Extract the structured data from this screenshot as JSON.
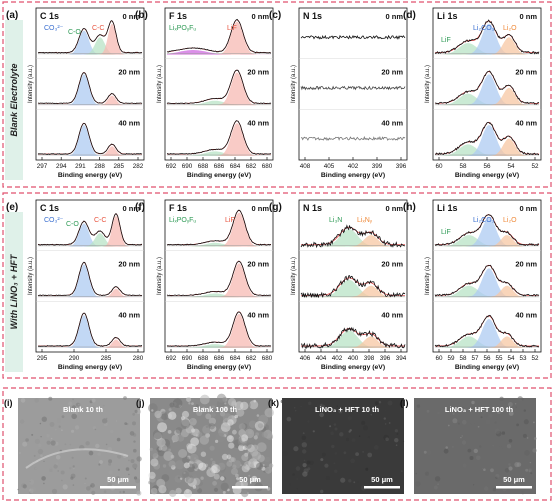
{
  "rows": [
    {
      "side_label": "Blank Electrolyte"
    },
    {
      "side_label": "With LiNO₃ + HFT"
    }
  ],
  "depths": [
    "0 nm",
    "20 nm",
    "40 nm"
  ],
  "y_label": "Intensity (a.u.)",
  "x_label": "Binding energy (eV)",
  "colors": {
    "frame": "#e0506e",
    "side_bg": "#dff1e9",
    "red_fill": "#f7b9b3",
    "blue_fill": "#aecbf2",
    "green_fill": "#b8e3c5",
    "orange_fill": "#f7c7a3",
    "purple_fill": "#cf6ae0",
    "label_red": "#e8533e",
    "label_blue": "#3a6fd0",
    "label_green": "#2e9a55",
    "label_orange": "#ef8a3a"
  },
  "panels": [
    {
      "letter": "(a)",
      "title": "C 1s",
      "ticks": [
        "297",
        "294",
        "291",
        "288",
        "285",
        "282"
      ],
      "peaks": [
        "CO₃²⁻",
        "C-O",
        "C-C"
      ],
      "shape": "c1s-blank"
    },
    {
      "letter": "(b)",
      "title": "F 1s",
      "ticks": [
        "692",
        "690",
        "688",
        "686",
        "684",
        "682",
        "680"
      ],
      "peaks": [
        "LiₓPOᵧFᵤ",
        "LiF"
      ],
      "shape": "f1s-blank"
    },
    {
      "letter": "(c)",
      "title": "N 1s",
      "ticks": [
        "408",
        "405",
        "402",
        "399",
        "396"
      ],
      "peaks": [],
      "shape": "n1s-blank"
    },
    {
      "letter": "(d)",
      "title": "Li 1s",
      "ticks": [
        "60",
        "58",
        "56",
        "54",
        "52"
      ],
      "peaks": [
        "LiF",
        "Li₂CO₃",
        "Li₂O"
      ],
      "shape": "li1s-blank"
    },
    {
      "letter": "(e)",
      "title": "C 1s",
      "ticks": [
        "295",
        "290",
        "285",
        "280"
      ],
      "peaks": [
        "CO₃²⁻",
        "C-O",
        "C-C"
      ],
      "shape": "c1s-hft"
    },
    {
      "letter": "(f)",
      "title": "F 1s",
      "ticks": [
        "692",
        "690",
        "688",
        "686",
        "684",
        "682",
        "680"
      ],
      "peaks": [
        "LiₓPOᵧFᵤ",
        "LiF"
      ],
      "shape": "f1s-hft"
    },
    {
      "letter": "(g)",
      "title": "N 1s",
      "ticks": [
        "406",
        "404",
        "402",
        "400",
        "398",
        "396",
        "394"
      ],
      "peaks": [
        "Li₃N",
        "LiₓNᵧ"
      ],
      "shape": "n1s-hft"
    },
    {
      "letter": "(h)",
      "title": "Li 1s",
      "ticks": [
        "60",
        "59",
        "58",
        "57",
        "56",
        "55",
        "54",
        "53",
        "52"
      ],
      "peaks": [
        "LiF",
        "Li₂CO₃",
        "Li₂O"
      ],
      "shape": "li1s-hft"
    }
  ],
  "sem": [
    {
      "letter": "(i)",
      "caption": "Blank  10 th",
      "scale": "50 μm",
      "tone": "light"
    },
    {
      "letter": "(j)",
      "caption": "Blank  100 th",
      "scale": "50 μm",
      "tone": "rough"
    },
    {
      "letter": "(k)",
      "caption": "LiNO₃ + HFT  10 th",
      "scale": "50 μm",
      "tone": "dark"
    },
    {
      "letter": "(l)",
      "caption": "LiNO₃ + HFT  100 th",
      "scale": "50 μm",
      "tone": "mid"
    }
  ]
}
